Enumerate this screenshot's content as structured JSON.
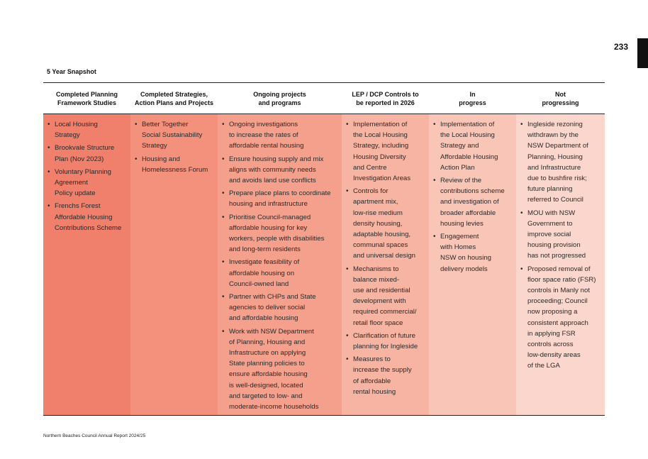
{
  "page_number": "233",
  "section_title": "5 Year Snapshot",
  "footer": "Northern Beaches Council Annual Report 2024/25",
  "columns": [
    {
      "header": "Completed Planning\nFramework Studies",
      "color": "#f07f6b",
      "items": [
        "Local Housing\nStrategy",
        "Brookvale Structure\nPlan (Nov 2023)",
        "Voluntary Planning\nAgreement\nPolicy update",
        "Frenchs Forest\nAffordable Housing\nContributions Scheme"
      ]
    },
    {
      "header": "Completed Strategies,\nAction Plans and Projects",
      "color": "#f3917d",
      "items": [
        "Better Together\nSocial Sustainability\nStrategy",
        "Housing and\nHomelessness Forum"
      ]
    },
    {
      "header": "Ongoing projects\nand programs",
      "color": "#f5a08c",
      "items": [
        "Ongoing investigations\nto increase the rates of\naffordable rental housing",
        "Ensure housing supply and mix\naligns with community needs\nand avoids land use conflicts",
        "Prepare place plans to coordinate\nhousing and infrastructure",
        "Prioritise Council-managed\naffordable housing for key\nworkers, people with disabilities\nand long-term residents",
        "Investigate feasibility of\naffordable housing on\nCouncil-owned land",
        "Partner with CHPs and State\nagencies to deliver social\nand affordable housing",
        "Work with NSW Department\nof Planning, Housing and\nInfrastructure on applying\nState planning policies to\nensure affordable housing\nis well-designed, located\nand targeted to low- and\nmoderate-income households"
      ]
    },
    {
      "header": "LEP / DCP Controls to\nbe reported in 2026",
      "color": "#f7b4a2",
      "items": [
        "Implementation of\nthe Local Housing\nStrategy, including\nHousing Diversity\nand Centre\nInvestigation Areas",
        "Controls for\napartment mix,\nlow-rise medium\ndensity housing,\nadaptable housing,\ncommunal spaces\nand universal design",
        "Mechanisms to\nbalance mixed-\nuse and residential\ndevelopment with\nrequired commercial/\nretail floor space",
        "Clarification of future\nplanning for Ingleside",
        "Measures to\nincrease the supply\nof affordable\nrental housing"
      ]
    },
    {
      "header": "In\nprogress",
      "color": "#f9c5b7",
      "items": [
        "Implementation of\nthe Local Housing\nStrategy and\nAffordable Housing\nAction Plan",
        "Review of the\ncontributions scheme\nand investigation of\nbroader affordable\nhousing levies",
        "Engagement\nwith Homes\nNSW on housing\ndelivery models"
      ]
    },
    {
      "header": "Not\nprogressing",
      "color": "#fbd6cc",
      "items": [
        "Ingleside rezoning\nwithdrawn by the\nNSW Department of\nPlanning, Housing\nand Infrastructure\ndue to bushfire risk;\nfuture planning\nreferred to Council",
        "MOU with NSW\nGovernment to\nimprove social\nhousing provision\nhas not progressed",
        "Proposed removal of\nfloor space ratio (FSR)\ncontrols in Manly not\nproceeding; Council\nnow proposing a\nconsistent approach\nin applying FSR\ncontrols across\nlow-density areas\nof the LGA"
      ]
    }
  ]
}
